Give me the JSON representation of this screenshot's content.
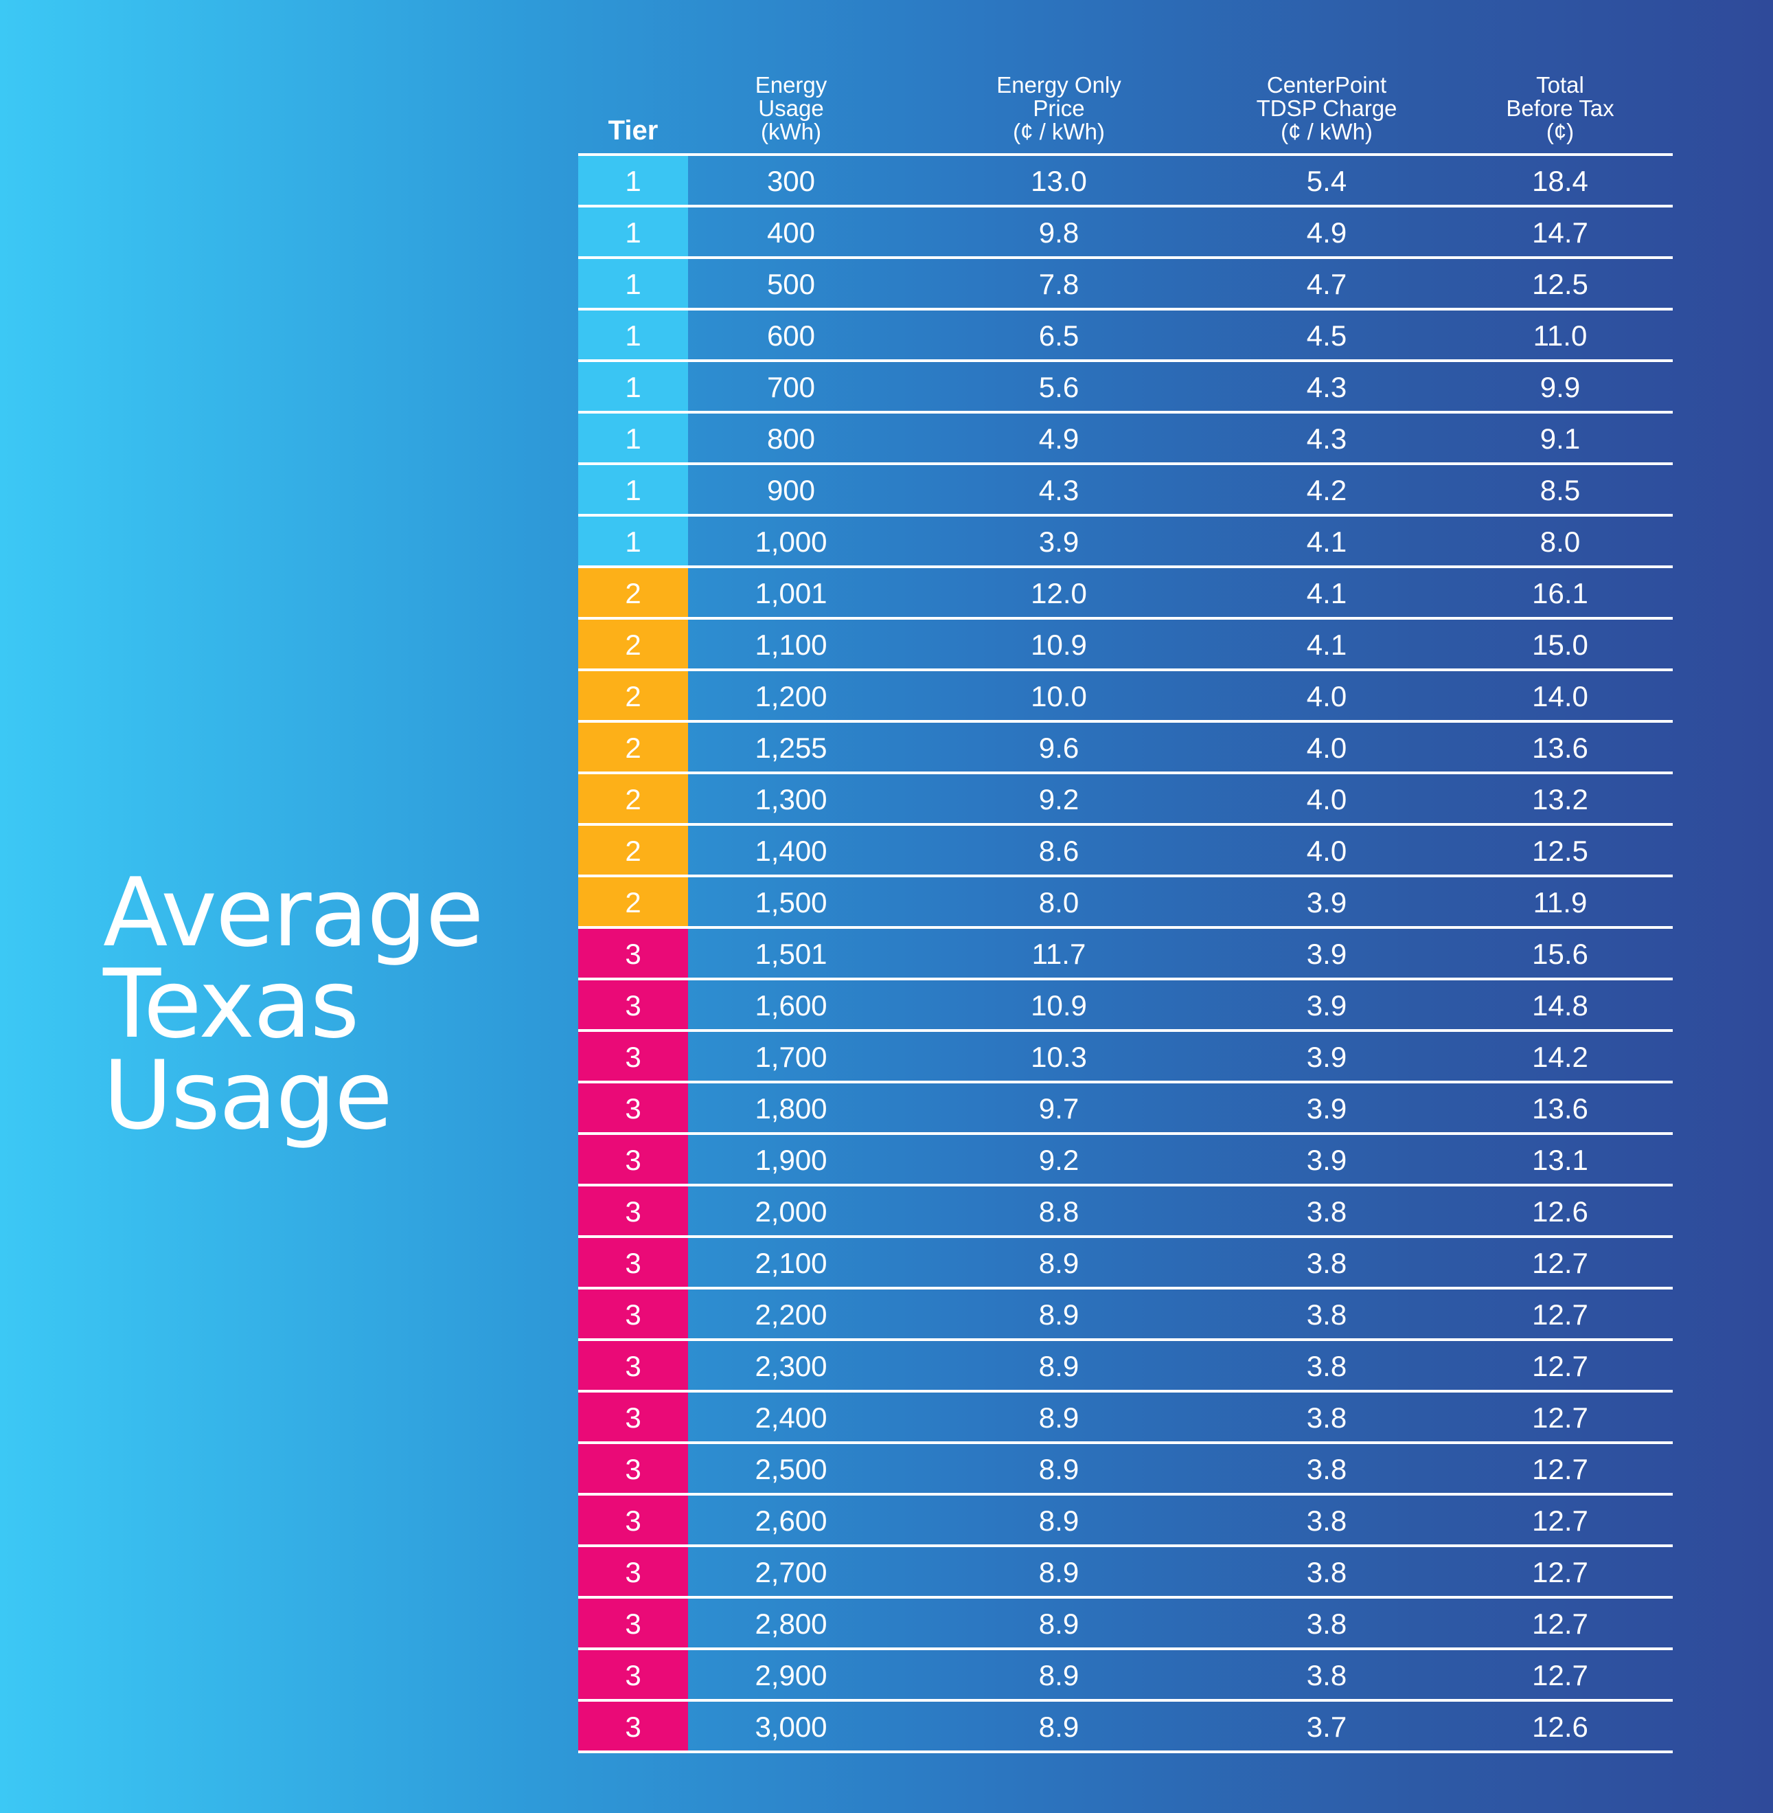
{
  "title": [
    "Average",
    "Texas",
    "Usage"
  ],
  "tier_colors": {
    "1": "#3ac5f3",
    "2": "#fdb018",
    "3": "#ea0a77"
  },
  "chart_data": {
    "type": "table",
    "columns": [
      {
        "key": "tier",
        "lines": [
          "Tier"
        ]
      },
      {
        "key": "usage",
        "lines": [
          "Energy",
          "Usage",
          "(kWh)"
        ]
      },
      {
        "key": "energy_price",
        "lines": [
          "Energy Only",
          "Price",
          "(¢ / kWh)"
        ]
      },
      {
        "key": "tdsp",
        "lines": [
          "CenterPoint",
          "TDSP Charge",
          "(¢ / kWh)"
        ]
      },
      {
        "key": "total",
        "lines": [
          "Total",
          "Before Tax",
          "(¢)"
        ]
      }
    ],
    "rows": [
      [
        "1",
        "300",
        "13.0",
        "5.4",
        "18.4"
      ],
      [
        "1",
        "400",
        "9.8",
        "4.9",
        "14.7"
      ],
      [
        "1",
        "500",
        "7.8",
        "4.7",
        "12.5"
      ],
      [
        "1",
        "600",
        "6.5",
        "4.5",
        "11.0"
      ],
      [
        "1",
        "700",
        "5.6",
        "4.3",
        "9.9"
      ],
      [
        "1",
        "800",
        "4.9",
        "4.3",
        "9.1"
      ],
      [
        "1",
        "900",
        "4.3",
        "4.2",
        "8.5"
      ],
      [
        "1",
        "1,000",
        "3.9",
        "4.1",
        "8.0"
      ],
      [
        "2",
        "1,001",
        "12.0",
        "4.1",
        "16.1"
      ],
      [
        "2",
        "1,100",
        "10.9",
        "4.1",
        "15.0"
      ],
      [
        "2",
        "1,200",
        "10.0",
        "4.0",
        "14.0"
      ],
      [
        "2",
        "1,255",
        "9.6",
        "4.0",
        "13.6"
      ],
      [
        "2",
        "1,300",
        "9.2",
        "4.0",
        "13.2"
      ],
      [
        "2",
        "1,400",
        "8.6",
        "4.0",
        "12.5"
      ],
      [
        "2",
        "1,500",
        "8.0",
        "3.9",
        "11.9"
      ],
      [
        "3",
        "1,501",
        "11.7",
        "3.9",
        "15.6"
      ],
      [
        "3",
        "1,600",
        "10.9",
        "3.9",
        "14.8"
      ],
      [
        "3",
        "1,700",
        "10.3",
        "3.9",
        "14.2"
      ],
      [
        "3",
        "1,800",
        "9.7",
        "3.9",
        "13.6"
      ],
      [
        "3",
        "1,900",
        "9.2",
        "3.9",
        "13.1"
      ],
      [
        "3",
        "2,000",
        "8.8",
        "3.8",
        "12.6"
      ],
      [
        "3",
        "2,100",
        "8.9",
        "3.8",
        "12.7"
      ],
      [
        "3",
        "2,200",
        "8.9",
        "3.8",
        "12.7"
      ],
      [
        "3",
        "2,300",
        "8.9",
        "3.8",
        "12.7"
      ],
      [
        "3",
        "2,400",
        "8.9",
        "3.8",
        "12.7"
      ],
      [
        "3",
        "2,500",
        "8.9",
        "3.8",
        "12.7"
      ],
      [
        "3",
        "2,600",
        "8.9",
        "3.8",
        "12.7"
      ],
      [
        "3",
        "2,700",
        "8.9",
        "3.8",
        "12.7"
      ],
      [
        "3",
        "2,800",
        "8.9",
        "3.8",
        "12.7"
      ],
      [
        "3",
        "2,900",
        "8.9",
        "3.8",
        "12.7"
      ],
      [
        "3",
        "3,000",
        "8.9",
        "3.7",
        "12.6"
      ]
    ]
  }
}
